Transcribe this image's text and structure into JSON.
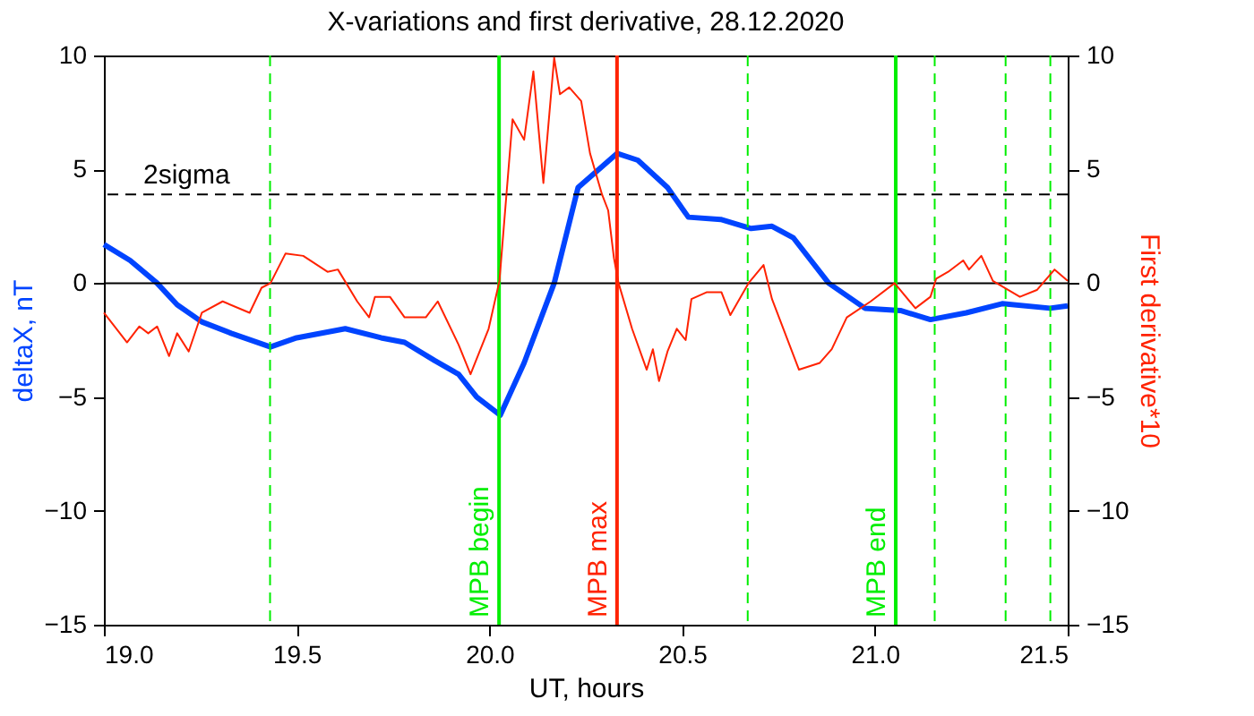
{
  "chart_data": {
    "type": "line",
    "title": "X-variations and first derivative, 28.12.2020",
    "xlabel": "UT, hours",
    "ylabel": "deltaX, nT",
    "y2label": "First derivative*10",
    "xlim": [
      19.0,
      21.5
    ],
    "xticks": [
      {
        "value": 19,
        "label": "19.0"
      },
      {
        "value": 19.5,
        "label": "19.5"
      },
      {
        "value": 20,
        "label": "20.0"
      },
      {
        "value": 20.5,
        "label": "20.5"
      },
      {
        "value": 21,
        "label": "21.0"
      },
      {
        "value": 21.5,
        "label": "21.5"
      }
    ],
    "ylim": [
      -15,
      10
    ],
    "yticks": [
      -15,
      -10,
      -5,
      0,
      5,
      10
    ],
    "y2lim": [
      -15,
      10
    ],
    "y2ticks": [
      -15,
      -10,
      -5,
      0,
      5,
      10
    ],
    "grid": false,
    "line_style": "solid",
    "marker": "none",
    "series": [
      {
        "color": "#0044ff",
        "x": [
          19.0,
          19.068,
          19.138,
          19.19,
          19.254,
          19.33,
          19.432,
          19.5,
          19.626,
          19.719,
          19.78,
          19.858,
          19.92,
          19.967,
          20.028,
          20.09,
          20.168,
          20.23,
          20.331,
          20.385,
          20.462,
          20.516,
          20.6,
          20.679,
          20.733,
          20.788,
          20.88,
          20.974,
          21.066,
          21.144,
          21.237,
          21.33,
          21.454,
          21.5
        ],
        "values": [
          1.7,
          1.0,
          0.0,
          -0.95,
          -1.7,
          -2.2,
          -2.8,
          -2.4,
          -2.0,
          -2.4,
          -2.6,
          -3.4,
          -4.0,
          -5.0,
          -5.8,
          -3.5,
          0.0,
          4.2,
          5.7,
          5.4,
          4.2,
          2.9,
          2.8,
          2.4,
          2.5,
          2.0,
          0.0,
          -1.1,
          -1.2,
          -1.6,
          -1.3,
          -0.9,
          -1.1,
          -1.0
        ]
      },
      {
        "color": "#ff2200",
        "axis": "y2",
        "x": [
          19.0,
          19.06,
          19.092,
          19.115,
          19.138,
          19.169,
          19.19,
          19.22,
          19.254,
          19.308,
          19.378,
          19.409,
          19.432,
          19.471,
          19.517,
          19.58,
          19.607,
          19.657,
          19.688,
          19.703,
          19.742,
          19.78,
          19.835,
          19.866,
          19.92,
          19.951,
          19.998,
          20.026,
          20.06,
          20.09,
          20.114,
          20.14,
          20.168,
          20.183,
          20.207,
          20.238,
          20.261,
          20.292,
          20.308,
          20.323,
          20.335,
          20.37,
          20.408,
          20.424,
          20.44,
          20.462,
          20.486,
          20.509,
          20.524,
          20.563,
          20.602,
          20.625,
          20.672,
          20.711,
          20.733,
          20.803,
          20.857,
          20.888,
          20.927,
          20.989,
          21.051,
          21.105,
          21.144,
          21.159,
          21.19,
          21.229,
          21.244,
          21.276,
          21.306,
          21.376,
          21.42,
          21.466,
          21.5
        ],
        "values": [
          -1.3,
          -2.6,
          -1.9,
          -2.2,
          -1.9,
          -3.2,
          -2.2,
          -3.0,
          -1.3,
          -0.8,
          -1.3,
          -0.2,
          0.0,
          1.3,
          1.2,
          0.5,
          0.6,
          -0.8,
          -1.5,
          -0.6,
          -0.6,
          -1.5,
          -1.5,
          -0.8,
          -2.7,
          -4.0,
          -2.0,
          0.1,
          7.2,
          6.3,
          9.3,
          4.4,
          9.9,
          8.3,
          8.6,
          8.0,
          5.7,
          3.9,
          3.2,
          1.1,
          0.0,
          -2.0,
          -3.8,
          -2.9,
          -4.3,
          -3.0,
          -2.0,
          -2.5,
          -0.7,
          -0.4,
          -0.4,
          -1.4,
          0.0,
          0.8,
          -0.7,
          -3.8,
          -3.5,
          -2.9,
          -1.5,
          -0.8,
          0.0,
          -1.1,
          -0.6,
          0.2,
          0.5,
          1.0,
          0.6,
          1.2,
          0.1,
          -0.6,
          -0.3,
          0.6,
          0.1
        ]
      }
    ],
    "ref_lines": [
      {
        "axis": "y",
        "value": 0,
        "label": null,
        "color": "#000000",
        "line_style": "solid"
      },
      {
        "axis": "y",
        "value": 3.9,
        "label": "2sigma",
        "color": "#000000",
        "line_style": "dashed"
      },
      {
        "axis": "x",
        "value": 19.431,
        "label": null,
        "color": "#00ee00",
        "line_style": "dashed"
      },
      {
        "axis": "x",
        "value": 20.025,
        "label": "MPB begin",
        "color": "#00ee00",
        "line_style": "solid"
      },
      {
        "axis": "x",
        "value": 20.331,
        "label": "MPB max",
        "color": "#ff2200",
        "line_style": "solid"
      },
      {
        "axis": "x",
        "value": 20.67,
        "label": null,
        "color": "#00ee00",
        "line_style": "dashed"
      },
      {
        "axis": "x",
        "value": 21.054,
        "label": "MPB end",
        "color": "#00ee00",
        "line_style": "solid"
      },
      {
        "axis": "x",
        "value": 21.155,
        "label": null,
        "color": "#00ee00",
        "line_style": "dashed"
      },
      {
        "axis": "x",
        "value": 21.339,
        "label": null,
        "color": "#00ee00",
        "line_style": "dashed"
      },
      {
        "axis": "x",
        "value": 21.455,
        "label": null,
        "color": "#00ee00",
        "line_style": "dashed"
      }
    ]
  }
}
